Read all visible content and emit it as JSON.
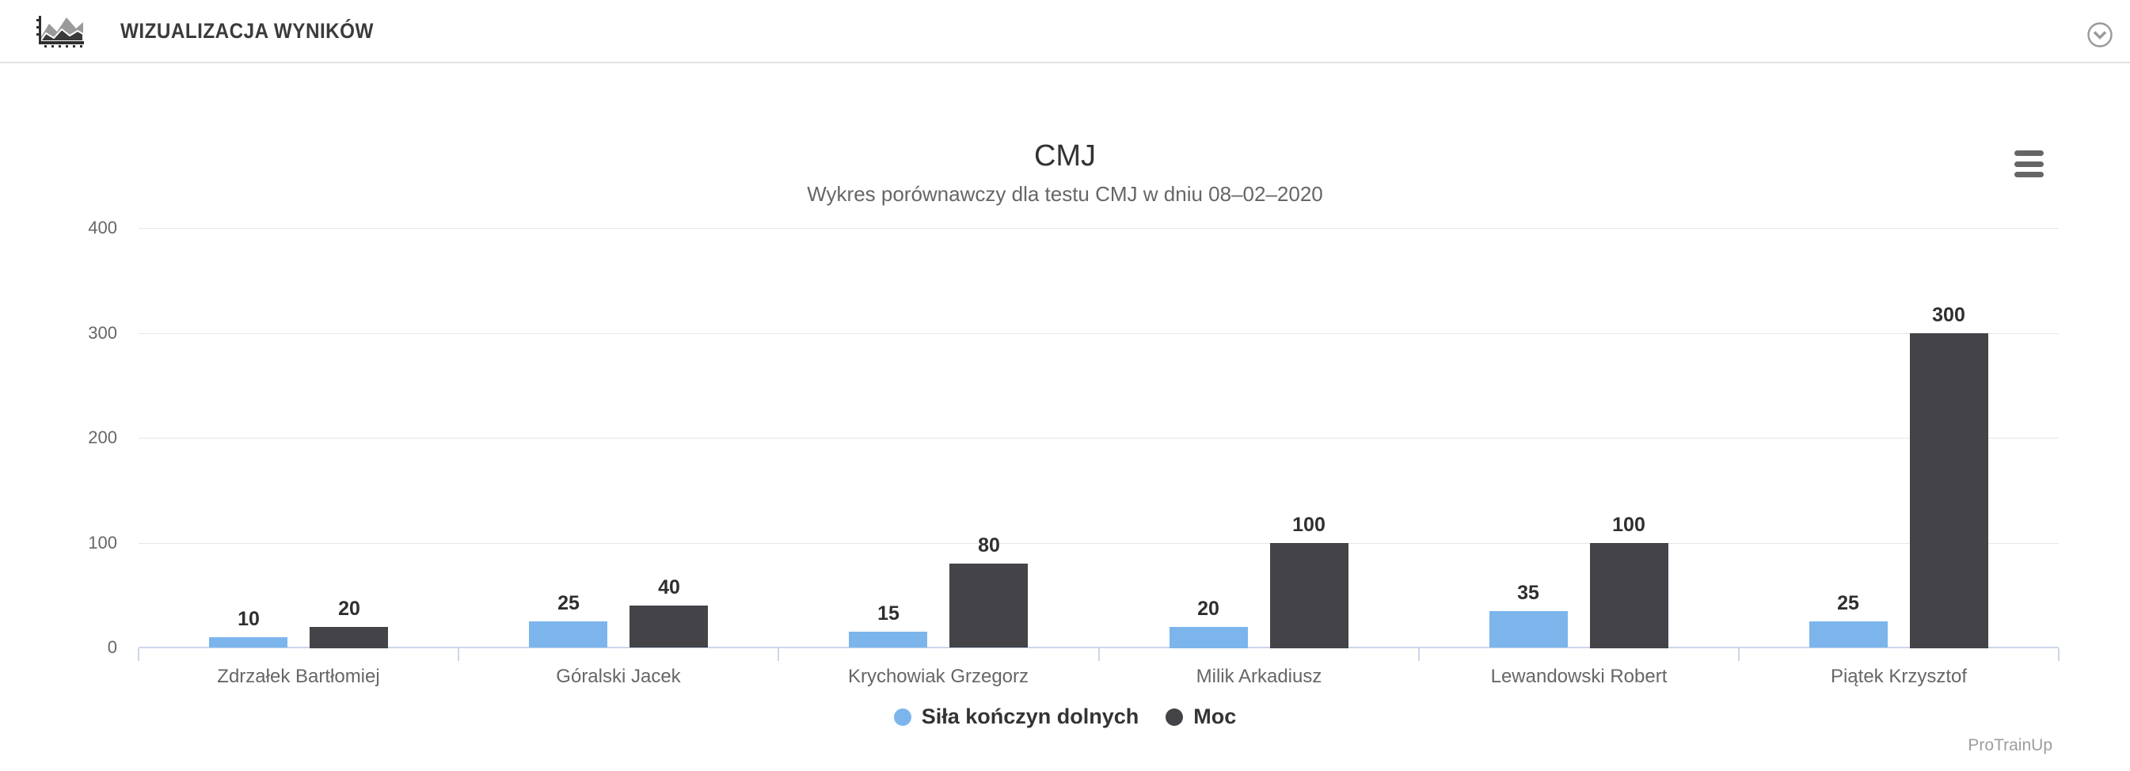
{
  "header": {
    "title": "WIZUALIZACJA WYNIKÓW"
  },
  "icons": {
    "header_icon": "area-chart-icon",
    "collapse_icon": "chevron-down-circle-icon",
    "export_icon": "hamburger-menu-icon"
  },
  "colors": {
    "series_blue": "#7cb5ec",
    "series_dark": "#434348",
    "gridline": "#e6e6e6",
    "axis_line": "#ccd6eb",
    "text_dark": "#333333",
    "text_gray": "#666666"
  },
  "footer": {
    "credits": "ProTrainUp"
  },
  "chart_data": {
    "type": "bar",
    "title": "CMJ",
    "subtitle": "Wykres porównawczy dla testu CMJ w dniu 08–02–2020",
    "categories": [
      "Zdrzałek Bartłomiej",
      "Góralski Jacek",
      "Krychowiak Grzegorz",
      "Milik Arkadiusz",
      "Lewandowski Robert",
      "Piątek Krzysztof"
    ],
    "series": [
      {
        "name": "Siła kończyn dolnych",
        "color": "#7cb5ec",
        "values": [
          10,
          25,
          15,
          20,
          35,
          25
        ]
      },
      {
        "name": "Moc",
        "color": "#434348",
        "values": [
          20,
          40,
          80,
          100,
          100,
          300
        ]
      }
    ],
    "xlabel": "",
    "ylabel": "",
    "ylim": [
      0,
      400
    ],
    "yticks": [
      0,
      100,
      200,
      300,
      400
    ],
    "grid": true,
    "legend_position": "bottom",
    "data_labels": true
  }
}
